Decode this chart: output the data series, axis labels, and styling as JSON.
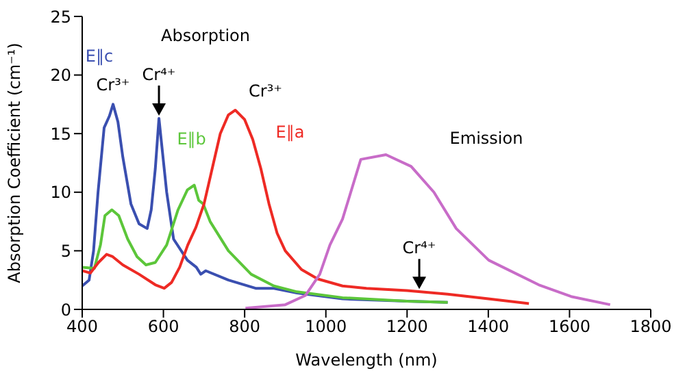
{
  "chart_data": {
    "type": "line",
    "xlabel": "Wavelength (nm)",
    "ylabel": "Absorption Coefficient (cm⁻¹)",
    "xlim": [
      400,
      1800
    ],
    "xticks": [
      400,
      600,
      800,
      1000,
      1200,
      1400,
      1600,
      1800
    ],
    "ylim": [
      0,
      25
    ],
    "yticks": [
      0,
      5,
      10,
      15,
      20,
      25
    ],
    "grid": false,
    "legend": false,
    "marker": "none",
    "line_style": "solid",
    "series": [
      {
        "name": "E∥c",
        "color": "#3a4fb0",
        "x": [
          400,
          417,
          428,
          439,
          454,
          467,
          476,
          488,
          500,
          520,
          540,
          560,
          570,
          580,
          589,
          608,
          625,
          659,
          681,
          692,
          704,
          760,
          827,
          872,
          929,
          1041,
          1200,
          1300
        ],
        "values": [
          2.0,
          2.5,
          5,
          10,
          15.5,
          16.5,
          17.5,
          16,
          13,
          9,
          7.3,
          6.9,
          8.5,
          12,
          16.3,
          10,
          6,
          4.2,
          3.6,
          3.0,
          3.3,
          2.5,
          1.8,
          1.8,
          1.4,
          0.9,
          0.7,
          0.6
        ]
      },
      {
        "name": "E∥b",
        "color": "#5cc63a",
        "x": [
          400,
          430,
          445,
          456,
          473,
          490,
          512,
          535,
          557,
          580,
          608,
          636,
          659,
          676,
          687,
          698,
          715,
          760,
          816,
          872,
          929,
          1041,
          1200,
          1300
        ],
        "values": [
          3.6,
          3.5,
          5.5,
          8,
          8.5,
          8,
          6,
          4.5,
          3.8,
          4.0,
          5.5,
          8.5,
          10.2,
          10.6,
          9.3,
          9.0,
          7.5,
          5.0,
          3.0,
          2.0,
          1.5,
          1.0,
          0.7,
          0.6
        ]
      },
      {
        "name": "E∥a",
        "color": "#ee2a24",
        "x": [
          400,
          420,
          440,
          460,
          475,
          500,
          540,
          580,
          602,
          620,
          640,
          660,
          680,
          700,
          720,
          740,
          760,
          777,
          800,
          820,
          840,
          860,
          880,
          900,
          940,
          980,
          1041,
          1100,
          1200,
          1300,
          1400,
          1500
        ],
        "values": [
          3.3,
          3.1,
          4,
          4.7,
          4.5,
          3.8,
          3.0,
          2.1,
          1.8,
          2.3,
          3.6,
          5.5,
          7.0,
          9,
          12,
          15,
          16.6,
          17,
          16.2,
          14.5,
          12,
          9,
          6.5,
          5,
          3.4,
          2.6,
          2.0,
          1.8,
          1.6,
          1.3,
          0.9,
          0.5
        ]
      },
      {
        "color": "#c86cc8",
        "x": [
          802,
          900,
          950,
          985,
          1010,
          1041,
          1086,
          1148,
          1210,
          1266,
          1321,
          1401,
          1524,
          1604,
          1700
        ],
        "values": [
          0.1,
          0.4,
          1.2,
          3,
          5.5,
          7.7,
          12.8,
          13.2,
          12.2,
          10,
          6.9,
          4.2,
          2.1,
          1.1,
          0.4
        ]
      }
    ],
    "annotations": [
      "Absorption",
      "Emission",
      {
        "text": "Cr³⁺",
        "x": 476,
        "y": 17.5
      },
      {
        "text": "Cr⁴⁺",
        "x": 589,
        "y": 16.3
      },
      {
        "text": "Cr³⁺",
        "x": 777,
        "y": 17
      },
      {
        "text": "Cr⁴⁺",
        "x": 1230,
        "y": 1.5
      }
    ]
  }
}
